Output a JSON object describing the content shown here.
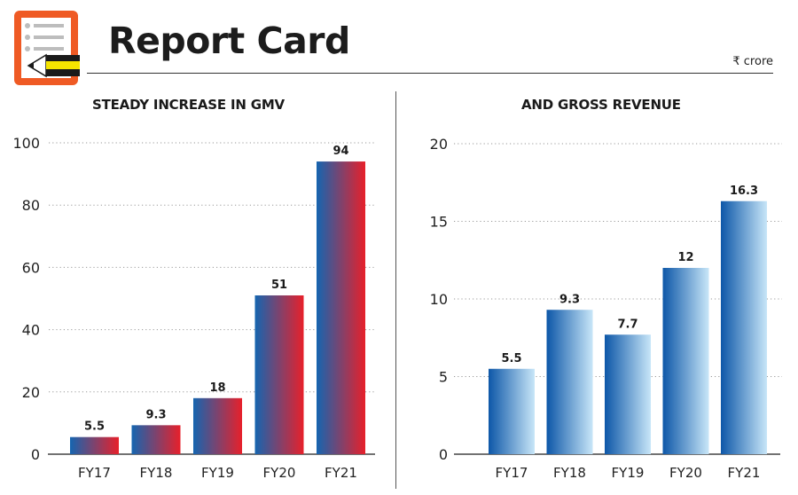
{
  "header": {
    "title": "Report Card",
    "unit": "₹ crore",
    "logo_icon": "report-card-pencil-icon"
  },
  "colors": {
    "logo_orange": "#ef5a24",
    "gmv_gradient_start": "#1565b0",
    "gmv_gradient_end": "#e8202a",
    "rev_gradient_start": "#0d57a8",
    "rev_gradient_end": "#c8e6f8",
    "pencil_yellow": "#f5e400"
  },
  "chart_data": [
    {
      "type": "bar",
      "title": "STEADY INCREASE IN GMV",
      "categories": [
        "FY17",
        "FY18",
        "FY19",
        "FY20",
        "FY21"
      ],
      "values": [
        5.5,
        9.3,
        18,
        51,
        94
      ],
      "value_labels": [
        "5.5",
        "9.3",
        "18",
        "51",
        "94"
      ],
      "yticks": [
        "0",
        "20",
        "40",
        "60",
        "80",
        "100"
      ],
      "ylim": [
        0,
        100
      ],
      "xlabel": "",
      "ylabel": "",
      "grid": "dotted horizontal"
    },
    {
      "type": "bar",
      "title": "AND GROSS REVENUE",
      "categories": [
        "FY17",
        "FY18",
        "FY19",
        "FY20",
        "FY21"
      ],
      "values": [
        5.5,
        9.3,
        7.7,
        12,
        16.3
      ],
      "value_labels": [
        "5.5",
        "9.3",
        "7.7",
        "12",
        "16.3"
      ],
      "yticks": [
        "0",
        "5",
        "10",
        "15",
        "20"
      ],
      "ylim": [
        0,
        20
      ],
      "xlabel": "",
      "ylabel": "",
      "grid": "dotted horizontal"
    }
  ]
}
